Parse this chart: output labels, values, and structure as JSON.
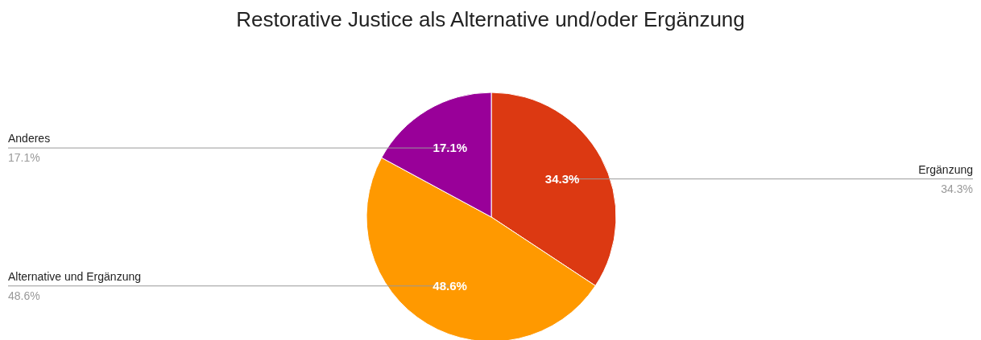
{
  "chart_data": {
    "type": "pie",
    "title": "Restorative Justice als Alternative und/oder Ergänzung",
    "categories": [
      "Ergänzung",
      "Alternative und Ergänzung",
      "Anderes"
    ],
    "values": [
      34.3,
      48.6,
      17.1
    ],
    "colors": [
      "#dc3912",
      "#ff9900",
      "#990099"
    ],
    "value_labels": [
      "34.3%",
      "48.6%",
      "17.1%"
    ]
  }
}
